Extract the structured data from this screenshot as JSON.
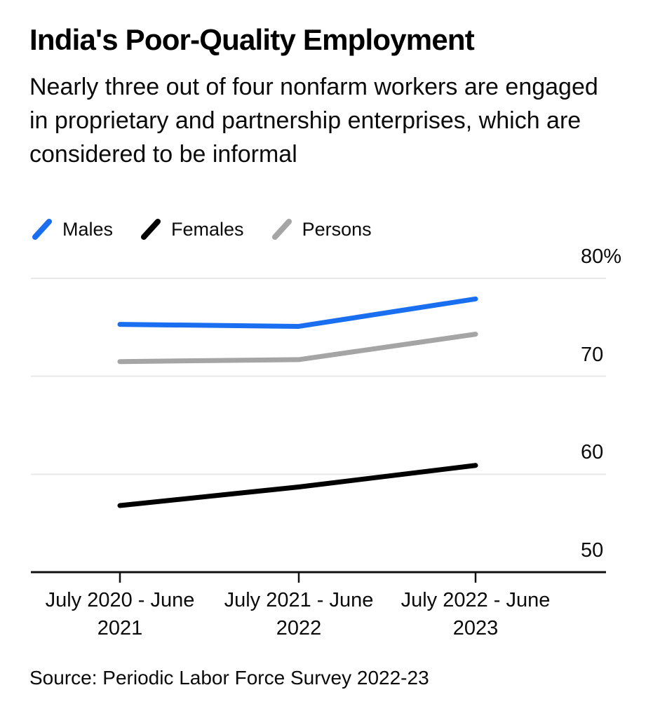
{
  "header": {
    "title": "India's Poor-Quality Employment",
    "subtitle": "Nearly three out of four nonfarm workers are engaged in proprietary and partnership enterprises, which are considered to be informal"
  },
  "legend": [
    {
      "label": "Males",
      "color": "#1a6ff0",
      "icon": "slash-icon"
    },
    {
      "label": "Females",
      "color": "#000000",
      "icon": "slash-icon"
    },
    {
      "label": "Persons",
      "color": "#a5a5a5",
      "icon": "slash-icon"
    }
  ],
  "chart_data": {
    "type": "line",
    "categories": [
      "July 2020 - June 2021",
      "July 2021 - June 2022",
      "July 2022 - June 2023"
    ],
    "x_tick_labels": [
      [
        "July 2020 - June",
        "2021"
      ],
      [
        "July 2021 - June",
        "2022"
      ],
      [
        "July 2022 - June",
        "2023"
      ]
    ],
    "series": [
      {
        "name": "Males",
        "color": "#1a6ff0",
        "values": [
          75.3,
          75.1,
          77.9
        ]
      },
      {
        "name": "Females",
        "color": "#000000",
        "values": [
          56.8,
          58.7,
          60.9
        ]
      },
      {
        "name": "Persons",
        "color": "#a5a5a5",
        "values": [
          71.5,
          71.7,
          74.3
        ]
      }
    ],
    "y_ticks": [
      {
        "value": 80,
        "label": "80%"
      },
      {
        "value": 70,
        "label": "70"
      },
      {
        "value": 60,
        "label": "60"
      },
      {
        "value": 50,
        "label": "50"
      }
    ],
    "ylim": [
      50,
      80
    ],
    "ylabel": "",
    "xlabel": "",
    "grid": "horizontal",
    "legend_position": "top-left",
    "colors": {
      "gridline": "#e9e9e9",
      "axis": "#111111",
      "background": "#ffffff"
    }
  },
  "source": {
    "text": "Source: Periodic Labor Force Survey 2022-23"
  }
}
